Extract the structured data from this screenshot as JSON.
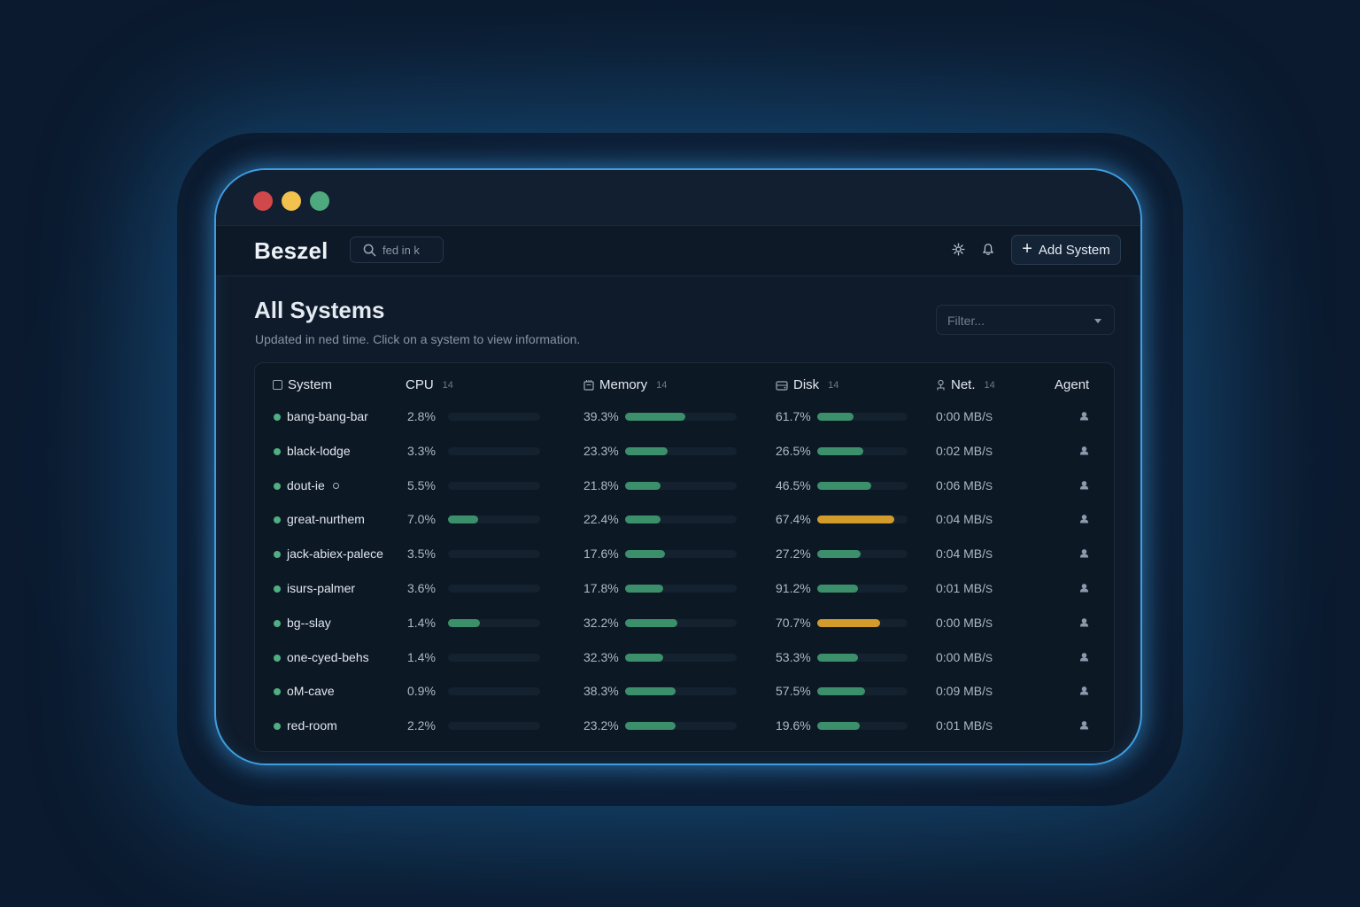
{
  "app": {
    "name": "Beszel"
  },
  "search": {
    "placeholder": "",
    "value": "fed in k"
  },
  "header": {
    "settings_icon": "gear-icon",
    "notifications_icon": "bell-icon",
    "add_button_label": "Add System"
  },
  "page": {
    "title": "All Systems",
    "subtitle": "Updated in ned time. Click on a system to view information.",
    "filter_placeholder": "Filter..."
  },
  "table": {
    "columns": {
      "system": "System",
      "cpu": "CPU",
      "cpu_count": "14",
      "memory": "Memory",
      "memory_count": "14",
      "disk": "Disk",
      "disk_count": "14",
      "net": "Net.",
      "net_count": "14",
      "agent": "Agent"
    },
    "rows": [
      {
        "name": "bang-bang-bar",
        "cpu": "2.8%",
        "cpu_level": 0,
        "memory": "39.3%",
        "memory_level": 0.54,
        "disk": "61.7%",
        "disk_level": 0.4,
        "disk_warn": false,
        "net": "0:00 MB/",
        "net_unit": "S"
      },
      {
        "name": "black-lodge",
        "cpu": "3.3%",
        "cpu_level": 0,
        "memory": "23.3%",
        "memory_level": 0.38,
        "disk": "26.5%",
        "disk_level": 0.51,
        "disk_warn": false,
        "net": "0:02 MB/",
        "net_unit": "S"
      },
      {
        "name": "dout-ie",
        "cpu": "5.5%",
        "cpu_level": 0,
        "memory": "21.8%",
        "memory_level": 0.32,
        "disk": "46.5%",
        "disk_level": 0.6,
        "disk_warn": false,
        "net": "0:06 MB/",
        "net_unit": "S"
      },
      {
        "name": "great-nurthem",
        "cpu": "7.0%",
        "cpu_level": 0.33,
        "memory": "22.4%",
        "memory_level": 0.32,
        "disk": "67.4%",
        "disk_level": 0.85,
        "disk_warn": true,
        "net": "0:04 MB/",
        "net_unit": "S"
      },
      {
        "name": "jack-abiex-palece",
        "cpu": "3.5%",
        "cpu_level": 0,
        "memory": "17.6%",
        "memory_level": 0.36,
        "disk": "27.2%",
        "disk_level": 0.48,
        "disk_warn": false,
        "net": "0:04 MB/",
        "net_unit": "S"
      },
      {
        "name": "isurs-palmer",
        "cpu": "3.6%",
        "cpu_level": 0,
        "memory": "17.8%",
        "memory_level": 0.34,
        "disk": "91.2%",
        "disk_level": 0.45,
        "disk_warn": false,
        "net": "0:01 MB/",
        "net_unit": "S"
      },
      {
        "name": "bg--slay",
        "cpu": "1.4%",
        "cpu_level": 0.35,
        "memory": "32.2%",
        "memory_level": 0.47,
        "disk": "70.7%",
        "disk_level": 0.7,
        "disk_warn": true,
        "net": "0:00 MB/",
        "net_unit": "S"
      },
      {
        "name": "one-cyed-behs",
        "cpu": "1.4%",
        "cpu_level": 0,
        "memory": "32.3%",
        "memory_level": 0.34,
        "disk": "53.3%",
        "disk_level": 0.45,
        "disk_warn": false,
        "net": "0:00 MB/",
        "net_unit": "S"
      },
      {
        "name": "oM-cave",
        "cpu": "0.9%",
        "cpu_level": 0,
        "memory": "38.3%",
        "memory_level": 0.45,
        "disk": "57.5%",
        "disk_level": 0.53,
        "disk_warn": false,
        "net": "0:09 MB/",
        "net_unit": "S"
      },
      {
        "name": "red-room",
        "cpu": "2.2%",
        "cpu_level": 0,
        "memory": "23.2%",
        "memory_level": 0.45,
        "disk": "19.6%",
        "disk_level": 0.47,
        "disk_warn": false,
        "net": "0:01 MB/",
        "net_unit": "S"
      }
    ]
  },
  "colors": {
    "accent": "#3f9ee0",
    "ok": "#3c8f6b",
    "warn": "#d39b2c",
    "status_up": "#4fae82"
  }
}
